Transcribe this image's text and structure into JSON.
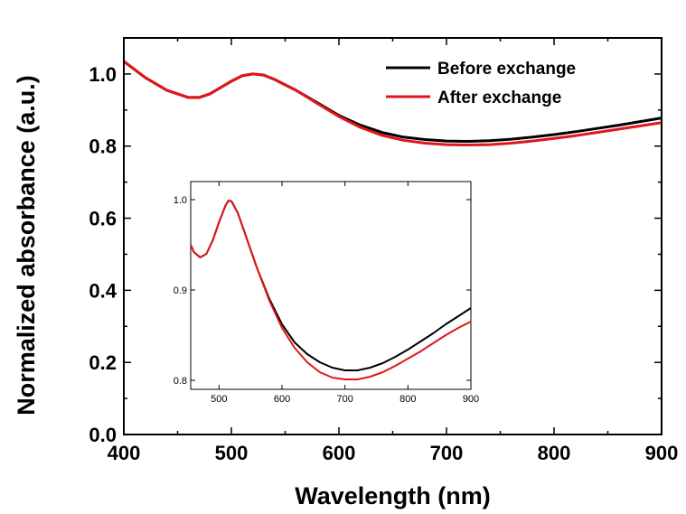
{
  "chart_data": [
    {
      "type": "line",
      "title": "",
      "xlabel": "Wavelength (nm)",
      "ylabel": "Normalized absorbance (a.u.)",
      "xlim": [
        400,
        900
      ],
      "ylim": [
        0.0,
        1.1
      ],
      "xticks": [
        "400",
        "500",
        "600",
        "700",
        "800",
        "900"
      ],
      "yticks": [
        "0.0",
        "0.2",
        "0.4",
        "0.6",
        "0.8",
        "1.0"
      ],
      "legend_position": "top-right",
      "grid": false,
      "series": [
        {
          "name": "Before exchange",
          "color": "#000000",
          "x": [
            400,
            420,
            440,
            460,
            470,
            480,
            500,
            510,
            520,
            530,
            540,
            560,
            580,
            600,
            620,
            640,
            660,
            680,
            700,
            720,
            740,
            760,
            780,
            800,
            820,
            840,
            860,
            880,
            900
          ],
          "y": [
            1.035,
            0.99,
            0.955,
            0.935,
            0.935,
            0.945,
            0.98,
            0.995,
            1.0,
            0.997,
            0.985,
            0.955,
            0.92,
            0.885,
            0.858,
            0.838,
            0.825,
            0.818,
            0.814,
            0.813,
            0.815,
            0.819,
            0.825,
            0.832,
            0.84,
            0.849,
            0.858,
            0.868,
            0.878
          ]
        },
        {
          "name": "After exchange",
          "color": "#e0161b",
          "x": [
            400,
            420,
            440,
            460,
            470,
            480,
            500,
            510,
            520,
            530,
            540,
            560,
            580,
            600,
            620,
            640,
            660,
            680,
            700,
            720,
            740,
            760,
            780,
            800,
            820,
            840,
            860,
            880,
            900
          ],
          "y": [
            1.035,
            0.99,
            0.955,
            0.935,
            0.935,
            0.945,
            0.98,
            0.995,
            1.0,
            0.997,
            0.985,
            0.955,
            0.918,
            0.882,
            0.852,
            0.83,
            0.816,
            0.808,
            0.804,
            0.803,
            0.804,
            0.808,
            0.814,
            0.821,
            0.829,
            0.838,
            0.847,
            0.856,
            0.865
          ]
        }
      ]
    },
    {
      "type": "line",
      "title": "",
      "xlabel": "",
      "ylabel": "",
      "xlim": [
        455,
        900
      ],
      "ylim": [
        0.79,
        1.02
      ],
      "xticks": [
        "500",
        "600",
        "700",
        "800",
        "900"
      ],
      "yticks": [
        "0.8",
        "0.9",
        "1.0"
      ],
      "grid": false,
      "series": [
        {
          "color": "#000000",
          "x": [
            455,
            460,
            470,
            480,
            490,
            500,
            510,
            515,
            520,
            530,
            540,
            560,
            580,
            600,
            620,
            640,
            660,
            680,
            700,
            720,
            740,
            760,
            780,
            800,
            820,
            840,
            860,
            880,
            900
          ],
          "y": [
            0.95,
            0.942,
            0.936,
            0.94,
            0.955,
            0.975,
            0.993,
            0.999,
            0.998,
            0.985,
            0.965,
            0.925,
            0.89,
            0.862,
            0.842,
            0.829,
            0.82,
            0.814,
            0.811,
            0.811,
            0.814,
            0.819,
            0.826,
            0.834,
            0.843,
            0.852,
            0.862,
            0.871,
            0.88
          ]
        },
        {
          "color": "#e0161b",
          "x": [
            455,
            460,
            470,
            480,
            490,
            500,
            510,
            515,
            520,
            530,
            540,
            560,
            580,
            600,
            620,
            640,
            660,
            680,
            700,
            720,
            740,
            760,
            780,
            800,
            820,
            840,
            860,
            880,
            900
          ],
          "y": [
            0.95,
            0.942,
            0.936,
            0.94,
            0.955,
            0.975,
            0.993,
            0.999,
            0.998,
            0.985,
            0.965,
            0.925,
            0.888,
            0.858,
            0.836,
            0.82,
            0.809,
            0.803,
            0.801,
            0.801,
            0.804,
            0.809,
            0.816,
            0.824,
            0.832,
            0.841,
            0.85,
            0.858,
            0.865
          ]
        }
      ]
    }
  ]
}
